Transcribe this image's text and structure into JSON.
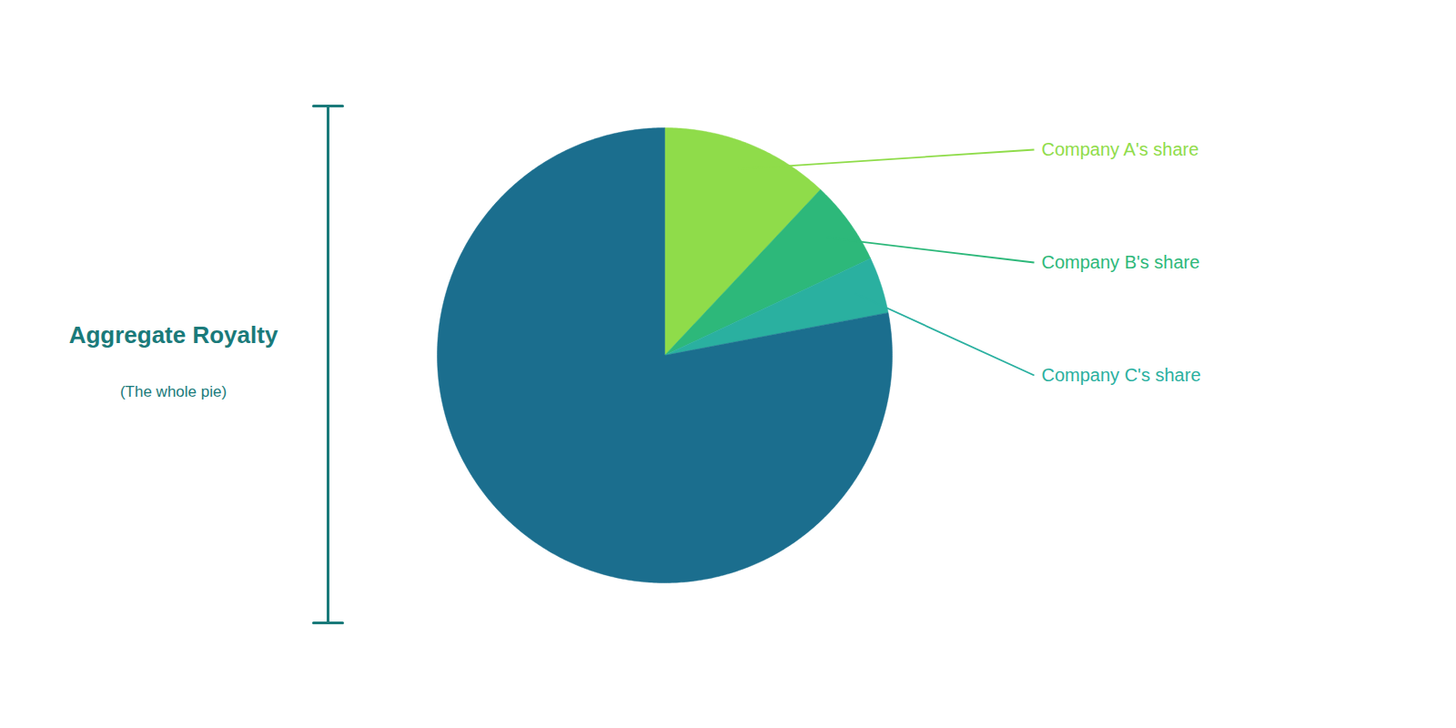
{
  "chart_data": {
    "type": "pie",
    "title": "Aggregate Royalty",
    "subtitle": "(The whole pie)",
    "categories": [
      "Company A's share",
      "Company B's share",
      "Company C's share",
      null
    ],
    "values": [
      12,
      6,
      4,
      78
    ],
    "colors": [
      "#8fdc4a",
      "#2db87a",
      "#2ab0a0",
      "#1b6e8e"
    ]
  }
}
